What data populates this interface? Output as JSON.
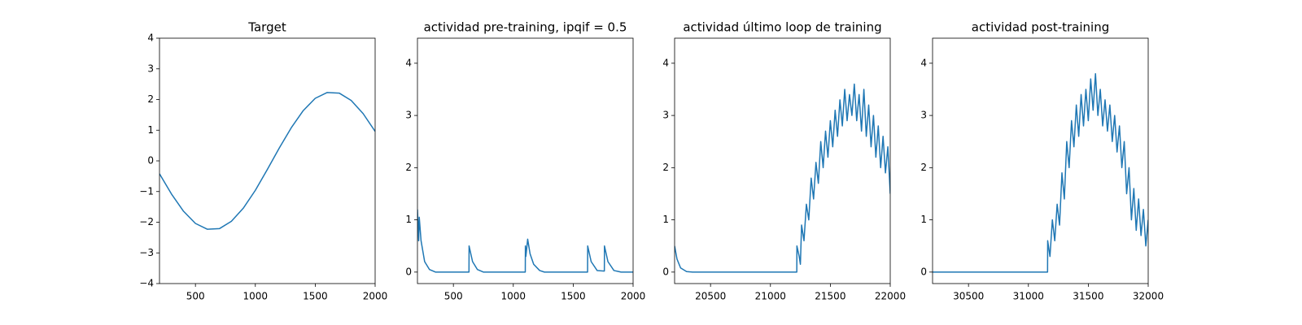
{
  "chart_data": [
    {
      "type": "line",
      "title": "Target",
      "color": "#1f77b4",
      "x": [
        200,
        300,
        400,
        500,
        600,
        700,
        800,
        900,
        1000,
        1100,
        1200,
        1300,
        1400,
        1500,
        1600,
        1700,
        1800,
        1900,
        2000
      ],
      "values": [
        -0.42,
        -1.08,
        -1.64,
        -2.04,
        -2.23,
        -2.21,
        -1.97,
        -1.54,
        -0.96,
        -0.28,
        0.42,
        1.08,
        1.64,
        2.04,
        2.23,
        2.21,
        1.97,
        1.54,
        0.96
      ],
      "xlim": [
        200,
        2000
      ],
      "ylim": [
        -4,
        4
      ],
      "xticks": [
        500,
        1000,
        1500,
        2000
      ],
      "yticks": [
        {
          "value": -4,
          "label": "−4"
        },
        {
          "value": -3,
          "label": "−3"
        },
        {
          "value": -2,
          "label": "−2"
        },
        {
          "value": -1,
          "label": "−1"
        },
        0,
        1,
        2,
        3,
        4
      ]
    },
    {
      "type": "line",
      "title": "actividad pre-training, ipqif = 0.5",
      "color": "#1f77b4",
      "x": [
        200,
        210,
        215,
        230,
        260,
        300,
        350,
        630,
        631,
        660,
        700,
        750,
        1100,
        1101,
        1105,
        1120,
        1140,
        1170,
        1220,
        1260,
        1620,
        1621,
        1650,
        1700,
        1760,
        1761,
        1790,
        1840,
        1900,
        2000
      ],
      "values": [
        1.2,
        0.6,
        1.05,
        0.6,
        0.2,
        0.05,
        0,
        0,
        0.5,
        0.2,
        0.05,
        0,
        0,
        0.5,
        0.3,
        0.63,
        0.35,
        0.15,
        0.03,
        0,
        0,
        0.5,
        0.2,
        0.03,
        0.02,
        0.5,
        0.2,
        0.03,
        0,
        0
      ],
      "xlim": [
        200,
        2000
      ],
      "ylim": [
        -0.22,
        4.48
      ],
      "xticks": [
        500,
        1000,
        1500,
        2000
      ],
      "yticks": [
        0,
        1,
        2,
        3,
        4
      ]
    },
    {
      "type": "line",
      "title": "actividad último loop de training",
      "color": "#1f77b4",
      "x": [
        20200,
        20220,
        20250,
        20300,
        20350,
        21220,
        21221,
        21240,
        21250,
        21260,
        21280,
        21300,
        21320,
        21340,
        21360,
        21380,
        21400,
        21420,
        21440,
        21460,
        21480,
        21500,
        21520,
        21540,
        21560,
        21580,
        21600,
        21620,
        21640,
        21660,
        21680,
        21700,
        21720,
        21740,
        21760,
        21780,
        21800,
        21820,
        21840,
        21860,
        21880,
        21900,
        21920,
        21940,
        21960,
        21980,
        22000
      ],
      "values": [
        0.5,
        0.25,
        0.08,
        0.01,
        0,
        0,
        0.5,
        0.3,
        0.15,
        0.9,
        0.6,
        1.3,
        1.0,
        1.8,
        1.4,
        2.1,
        1.7,
        2.5,
        2.0,
        2.7,
        2.2,
        2.9,
        2.4,
        3.1,
        2.6,
        3.3,
        2.8,
        3.5,
        2.9,
        3.4,
        3.0,
        3.6,
        2.9,
        3.4,
        2.7,
        3.5,
        2.6,
        3.2,
        2.4,
        3.0,
        2.2,
        2.8,
        2.0,
        2.6,
        1.9,
        2.4,
        1.5
      ],
      "xlim": [
        20200,
        22000
      ],
      "ylim": [
        -0.22,
        4.48
      ],
      "xticks": [
        20500,
        21000,
        21500,
        22000
      ],
      "yticks": [
        0,
        1,
        2,
        3,
        4
      ]
    },
    {
      "type": "line",
      "title": "actividad post-training",
      "color": "#1f77b4",
      "x": [
        30200,
        31160,
        31161,
        31180,
        31200,
        31220,
        31240,
        31260,
        31280,
        31300,
        31320,
        31340,
        31360,
        31380,
        31400,
        31420,
        31440,
        31460,
        31480,
        31500,
        31520,
        31540,
        31560,
        31580,
        31600,
        31620,
        31640,
        31660,
        31680,
        31700,
        31720,
        31740,
        31760,
        31780,
        31800,
        31820,
        31840,
        31860,
        31880,
        31900,
        31920,
        31940,
        31960,
        31980,
        32000
      ],
      "values": [
        0,
        0,
        0.6,
        0.3,
        1.0,
        0.6,
        1.3,
        0.9,
        1.9,
        1.4,
        2.5,
        2.0,
        2.9,
        2.4,
        3.2,
        2.6,
        3.4,
        2.8,
        3.5,
        2.9,
        3.7,
        3.1,
        3.8,
        3.0,
        3.5,
        2.8,
        3.3,
        2.7,
        3.2,
        2.5,
        3.0,
        2.3,
        2.8,
        2.0,
        2.5,
        1.5,
        2.0,
        1.0,
        1.6,
        0.8,
        1.4,
        0.7,
        1.2,
        0.5,
        1.0
      ],
      "xlim": [
        30200,
        32000
      ],
      "ylim": [
        -0.22,
        4.48
      ],
      "xticks": [
        30500,
        31000,
        31500,
        32000
      ],
      "yticks": [
        0,
        1,
        2,
        3,
        4
      ]
    }
  ]
}
